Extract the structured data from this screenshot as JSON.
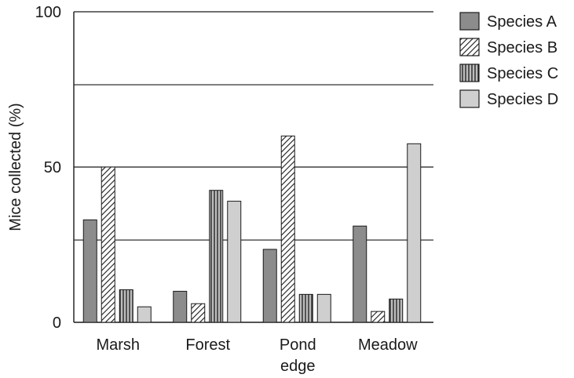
{
  "chart_data": {
    "type": "bar",
    "title": "",
    "xlabel": "",
    "ylabel": "Mice collected (%)",
    "ylim": [
      0,
      100
    ],
    "yticks": [
      0,
      50,
      100
    ],
    "gridlines": [
      26.5,
      50,
      76.5,
      100
    ],
    "categories": [
      {
        "lines": [
          "Marsh"
        ]
      },
      {
        "lines": [
          "Forest"
        ]
      },
      {
        "lines": [
          "Pond",
          "edge"
        ]
      },
      {
        "lines": [
          "Meadow"
        ]
      }
    ],
    "series": [
      {
        "name": "Species A",
        "pattern": "solid-dark",
        "values": [
          33,
          10,
          23.5,
          31
        ]
      },
      {
        "name": "Species B",
        "pattern": "diagonal-hatch",
        "values": [
          50,
          6,
          60,
          3.5
        ]
      },
      {
        "name": "Species C",
        "pattern": "vertical-hatch",
        "values": [
          10.5,
          42.5,
          9,
          7.5
        ]
      },
      {
        "name": "Species D",
        "pattern": "solid-light",
        "values": [
          5,
          39,
          9,
          57.5
        ]
      }
    ],
    "legend_position": "top-right",
    "colors": {
      "solid_dark": "#8c8c8c",
      "solid_light": "#cfcfcf",
      "hatch_background": "#ffffff",
      "vertical_hatch_background": "#bdbdbd",
      "stroke": "#1a1a1a"
    }
  }
}
